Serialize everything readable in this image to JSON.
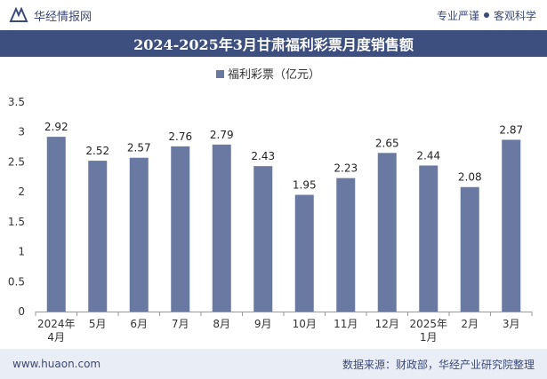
{
  "header": {
    "brand": "华经情报网",
    "tagline_left": "专业严谨",
    "tagline_right": "客观科学"
  },
  "footer": {
    "url": "www.huaon.com",
    "source": "数据来源：财政部，华经产业研究院整理"
  },
  "colors": {
    "bar": "#6a79a2",
    "header": "#3d4f7e",
    "footer": "#e9edf5"
  },
  "chart_data": {
    "type": "bar",
    "title": "2024-2025年3月甘肃福利彩票月度销售额",
    "legend": "福利彩票（亿元）",
    "legend_position": "top-center",
    "categories": [
      [
        "2024年",
        "4月"
      ],
      [
        "5月"
      ],
      [
        "6月"
      ],
      [
        "7月"
      ],
      [
        "8月"
      ],
      [
        "9月"
      ],
      [
        "10月"
      ],
      [
        "11月"
      ],
      [
        "12月"
      ],
      [
        "2025年",
        "1月"
      ],
      [
        "2月"
      ],
      [
        "3月"
      ]
    ],
    "series": [
      {
        "name": "福利彩票（亿元）",
        "values": [
          2.92,
          2.52,
          2.57,
          2.76,
          2.79,
          2.43,
          1.95,
          2.23,
          2.65,
          2.44,
          2.08,
          2.87
        ]
      }
    ],
    "value_labels": [
      "2.92",
      "2.52",
      "2.57",
      "2.76",
      "2.79",
      "2.43",
      "1.95",
      "2.23",
      "2.65",
      "2.44",
      "2.08",
      "2.87"
    ],
    "yticks": [
      "0",
      "0.5",
      "1",
      "1.5",
      "2",
      "2.5",
      "3",
      "3.5"
    ],
    "ylim": [
      0,
      3.5
    ],
    "grid": false
  }
}
